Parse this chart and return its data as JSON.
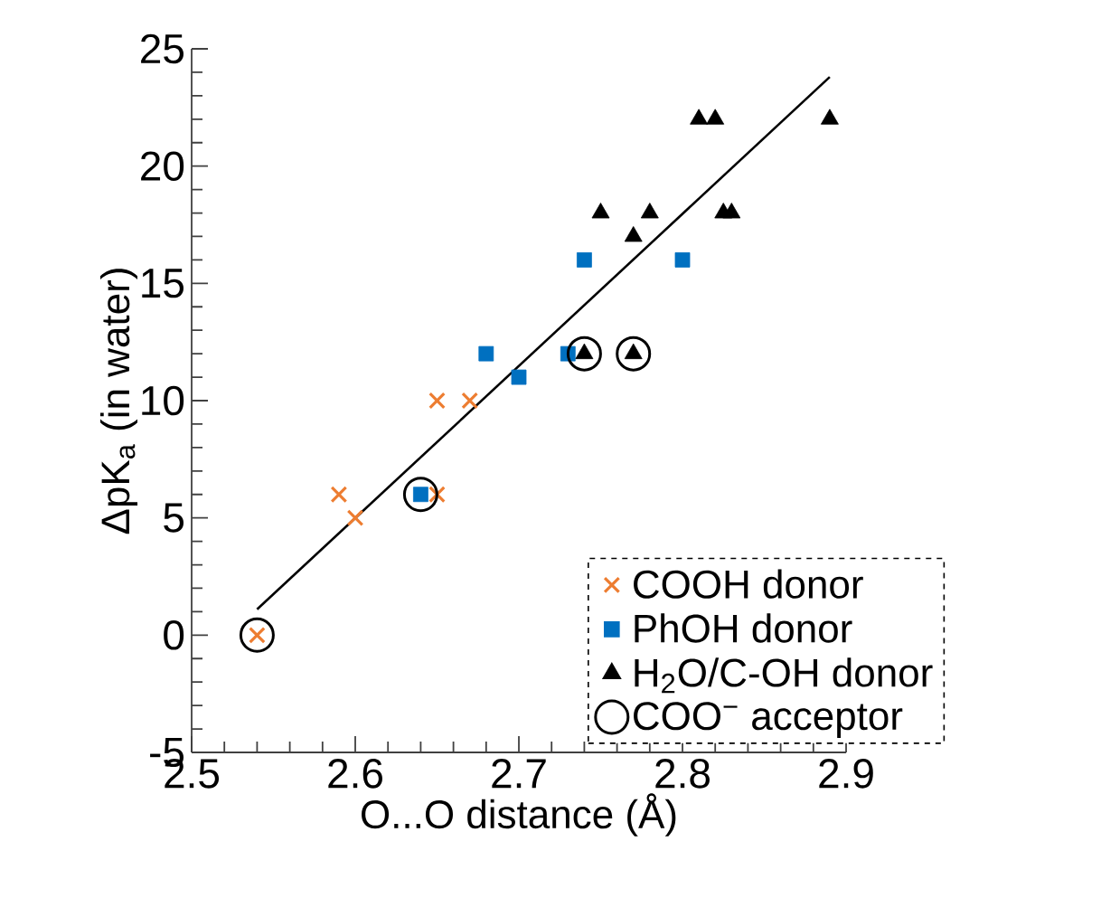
{
  "chart_data": {
    "type": "scatter",
    "xlabel": "O...O distance (Å)",
    "ylabel": "ΔpK$_{a}$ (in water)",
    "xlim": [
      2.5,
      2.9
    ],
    "xticks": [
      2.5,
      2.6,
      2.7,
      2.8,
      2.9
    ],
    "ylim": [
      -5,
      25
    ],
    "yticks": [
      -5,
      0,
      5,
      10,
      15,
      20,
      25
    ],
    "legend": "bottom right",
    "grid": false,
    "series": [
      {
        "name": "COOH donor",
        "color": "#ed7d31",
        "marker": "cross",
        "x": [
          2.54,
          2.59,
          2.6,
          2.65,
          2.65,
          2.67
        ],
        "values": [
          0,
          6,
          5,
          6,
          10,
          10
        ]
      },
      {
        "name": "PhOH donor",
        "color": "#0070c0",
        "marker": "square",
        "x": [
          2.64,
          2.68,
          2.7,
          2.73,
          2.74,
          2.8
        ],
        "values": [
          6,
          12,
          11,
          12,
          16,
          16
        ]
      },
      {
        "name": "H$_{2}$O/C-OH donor",
        "color": "#000000",
        "marker": "triangle",
        "x": [
          2.74,
          2.77,
          2.75,
          2.78,
          2.77,
          2.81,
          2.82,
          2.825,
          2.83,
          2.89
        ],
        "values": [
          12,
          12,
          18,
          18,
          17,
          22,
          22,
          18,
          18,
          22
        ]
      },
      {
        "name": "COO$^{−}$ acceptor",
        "color": "#000000",
        "marker": "circle",
        "x": [
          2.54,
          2.64,
          2.74,
          2.77
        ],
        "values": [
          0,
          6,
          12,
          12
        ]
      },
      {
        "type": "line",
        "color": "#000000",
        "marker": "none",
        "x": [
          2.54,
          2.89
        ],
        "values": [
          1.1,
          23.8
        ]
      }
    ]
  }
}
